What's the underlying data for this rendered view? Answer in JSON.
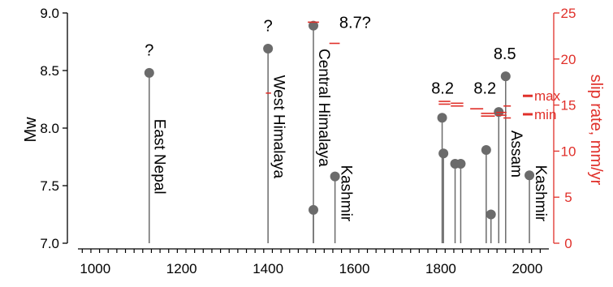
{
  "chart_data": {
    "type": "scatter",
    "title": "",
    "xlabel": "",
    "ylabel": "Mw",
    "ylabel_right": "slip rate, mm/yr",
    "xlim": [
      960,
      2050
    ],
    "ylim": [
      7.0,
      9.0
    ],
    "ylim_right": [
      0,
      25
    ],
    "x_ticks": [
      "1000",
      "1200",
      "1400",
      "1600",
      "1800",
      "2000"
    ],
    "y_ticks": [
      "7.0",
      "7.5",
      "8.0",
      "8.5",
      "9.0"
    ],
    "y_right_ticks": [
      "0",
      "5",
      "10",
      "15",
      "20",
      "25"
    ],
    "grid": false,
    "legend": "none",
    "colors": {
      "earthquakes": "#6b6b6b",
      "slip_rate": "#e0302a",
      "axis": "#000000"
    },
    "earthquakes": {
      "name": "Mw",
      "points": [
        {
          "x": 1125,
          "y": 8.48
        },
        {
          "x": 1400,
          "y": 8.69
        },
        {
          "x": 1505,
          "y": 7.29
        },
        {
          "x": 1505,
          "y": 8.89
        },
        {
          "x": 1555,
          "y": 7.58
        },
        {
          "x": 1803,
          "y": 8.09
        },
        {
          "x": 1806,
          "y": 7.78
        },
        {
          "x": 1833,
          "y": 7.69
        },
        {
          "x": 1846,
          "y": 7.69
        },
        {
          "x": 1905,
          "y": 7.81
        },
        {
          "x": 1916,
          "y": 7.25
        },
        {
          "x": 1934,
          "y": 8.14
        },
        {
          "x": 1950,
          "y": 8.45
        },
        {
          "x": 2005,
          "y": 7.59
        }
      ]
    },
    "slip_rate": {
      "name": "slip rate",
      "segments": [
        {
          "x0": 1395,
          "x1": 1407,
          "y": 16.3
        },
        {
          "x0": 1492,
          "x1": 1518,
          "y": 24.0
        },
        {
          "x0": 1542,
          "x1": 1566,
          "y": 21.7
        },
        {
          "x0": 1795,
          "x1": 1822,
          "y": 15.4
        },
        {
          "x0": 1795,
          "x1": 1822,
          "y": 15.1
        },
        {
          "x0": 1823,
          "x1": 1852,
          "y": 15.2
        },
        {
          "x0": 1823,
          "x1": 1852,
          "y": 14.9
        },
        {
          "x0": 1868,
          "x1": 1898,
          "y": 14.6
        },
        {
          "x0": 1893,
          "x1": 1925,
          "y": 14.1
        },
        {
          "x0": 1893,
          "x1": 1925,
          "y": 13.8
        },
        {
          "x0": 1928,
          "x1": 1952,
          "y": 14.2
        },
        {
          "x0": 1928,
          "x1": 1952,
          "y": 13.9
        },
        {
          "x0": 1945,
          "x1": 1962,
          "y": 14.9
        },
        {
          "x0": 1945,
          "x1": 1962,
          "y": 13.6
        }
      ]
    },
    "legend_marks": [
      {
        "label": "max",
        "y": 16.0
      },
      {
        "label": "min",
        "y": 14.0
      }
    ],
    "magnitude_labels": [
      {
        "text": "?",
        "x": 1125,
        "y": 8.63
      },
      {
        "text": "?",
        "x": 1400,
        "y": 8.84
      },
      {
        "text": "8.7?",
        "x": 1565,
        "y": 8.87
      },
      {
        "text": "8.2",
        "x": 1804,
        "y": 8.3
      },
      {
        "text": "8.2",
        "x": 1902,
        "y": 8.3
      },
      {
        "text": "8.5",
        "x": 1948,
        "y": 8.6
      }
    ],
    "region_labels": [
      {
        "text": "East Nepal",
        "x": 1138,
        "y": 8.08
      },
      {
        "text": "West Himalaya",
        "x": 1414,
        "y": 8.46
      },
      {
        "text": "Central Himalaya",
        "x": 1518,
        "y": 8.69
      },
      {
        "text": "Kashmir",
        "x": 1570,
        "y": 7.68
      },
      {
        "text": "Assam",
        "x": 1964,
        "y": 7.98
      },
      {
        "text": "Kashmir",
        "x": 2020,
        "y": 7.68
      }
    ]
  }
}
